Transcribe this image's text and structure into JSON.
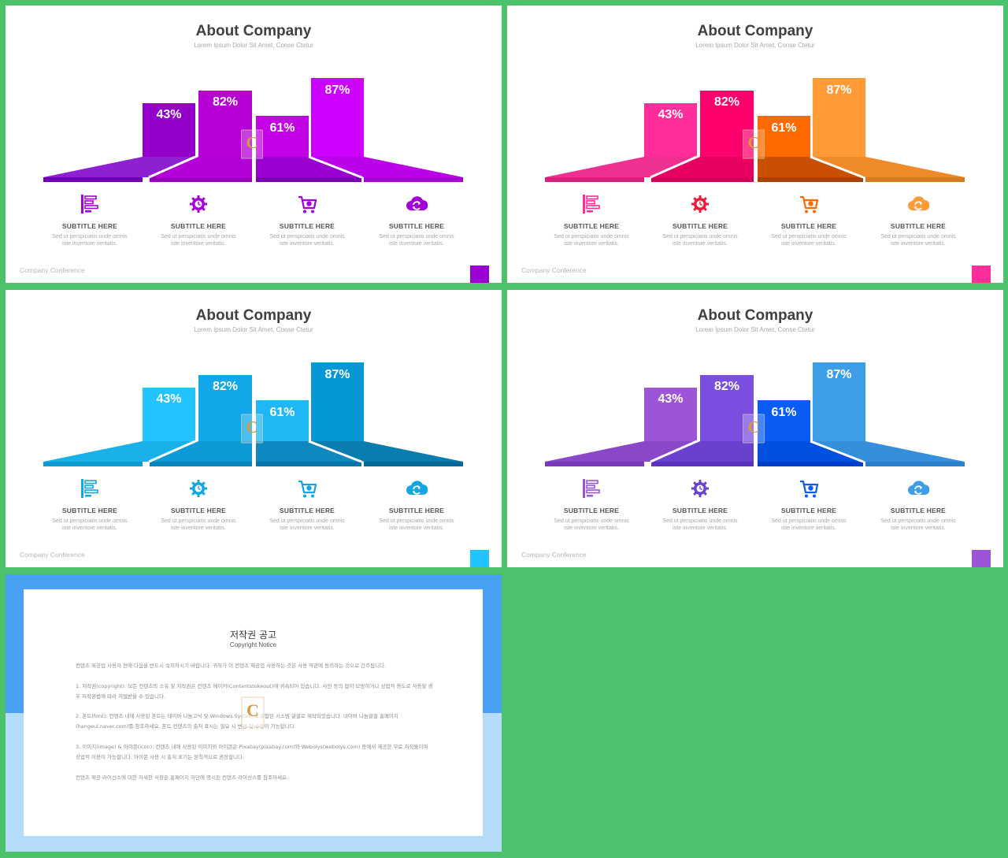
{
  "slides": [
    {
      "title": "About Company",
      "subtitle": "Lorem Ipsum Dolor Sit Amet, Conse Ctetur",
      "footer": "Company Conference",
      "colors": {
        "bar": [
          "#9400c9",
          "#b700d6",
          "#c400e8",
          "#cd00ff"
        ],
        "base_top": [
          "#8f1fd2",
          "#b300d6",
          "#9a00d0",
          "#bb00ea"
        ],
        "base_bottom": [
          "#6d00b0",
          "#9600bd",
          "#7c00b0",
          "#a500d0"
        ],
        "icon": "#a400d8",
        "corner": "#9a00d0"
      },
      "values": [
        "43%",
        "82%",
        "61%",
        "87%"
      ],
      "features": [
        {
          "icon": "list-icon",
          "title": "SUBTITLE HERE",
          "line1": "Sed ut perspiciatis unde omnis",
          "line2": "iste inventore veritatis."
        },
        {
          "icon": "gear-icon",
          "title": "SUBTITLE HERE",
          "line1": "Sed ut perspiciatis unde omnis",
          "line2": "iste inventore veritatis."
        },
        {
          "icon": "cart-icon",
          "title": "SUBTITLE HERE",
          "line1": "Sed ut perspiciatis unde omnis",
          "line2": "iste inventore veritatis."
        },
        {
          "icon": "cloud-sync-icon",
          "title": "SUBTITLE HERE",
          "line1": "Sed ut perspiciatis unde omnis",
          "line2": "iste inventore veritatis."
        }
      ]
    },
    {
      "title": "About Company",
      "subtitle": "Lorem Ipsum Dolor Sit Amet, Conse Ctetur",
      "footer": "Company Conference",
      "colors": {
        "bar": [
          "#ff2e9a",
          "#ff006c",
          "#ff6a00",
          "#ff9a35"
        ],
        "base_top": [
          "#f03090",
          "#e80060",
          "#c85000",
          "#ef8a28"
        ],
        "base_bottom": [
          "#d6207a",
          "#d0005a",
          "#a84000",
          "#d87a20"
        ],
        "icon_list": [
          "#ff2e9a",
          "#ee1a3a",
          "#ff6a00",
          "#ff9a35"
        ],
        "corner": "#ff2e9a"
      },
      "values": [
        "43%",
        "82%",
        "61%",
        "87%"
      ],
      "features": [
        {
          "icon": "list-icon",
          "title": "SUBTITLE HERE",
          "line1": "Sed ut perspiciatis unde omnis",
          "line2": "iste inventore veritatis."
        },
        {
          "icon": "gear-icon",
          "title": "SUBTITLE HERE",
          "line1": "Sed ut perspiciatis unde omnis",
          "line2": "iste inventore veritatis."
        },
        {
          "icon": "cart-icon",
          "title": "SUBTITLE HERE",
          "line1": "Sed ut perspiciatis unde omnis",
          "line2": "iste inventore veritatis."
        },
        {
          "icon": "cloud-sync-icon",
          "title": "SUBTITLE HERE",
          "line1": "Sed ut perspiciatis unde omnis",
          "line2": "iste inventore veritatis."
        }
      ]
    },
    {
      "title": "About Company",
      "subtitle": "Lorem Ipsum Dolor Sit Amet, Conse Ctetur",
      "footer": "Company Conference",
      "colors": {
        "bar": [
          "#22c4ff",
          "#10a8e8",
          "#1fb8f5",
          "#0698d4"
        ],
        "base_top": [
          "#1ab0ea",
          "#0d9bd8",
          "#0f88c0",
          "#0a7cae"
        ],
        "base_bottom": [
          "#0f9bd2",
          "#0a86bd",
          "#0a74a8",
          "#066896"
        ],
        "icon": "#13a6e3",
        "corner": "#22c4ff"
      },
      "values": [
        "43%",
        "82%",
        "61%",
        "87%"
      ],
      "features": [
        {
          "icon": "list-icon",
          "title": "SUBTITLE HERE",
          "line1": "Sed ut perspiciatis unde omnis",
          "line2": "iste inventore veritatis."
        },
        {
          "icon": "gear-icon",
          "title": "SUBTITLE HERE",
          "line1": "Sed ut perspiciatis unde omnis",
          "line2": "iste inventore veritatis."
        },
        {
          "icon": "cart-icon",
          "title": "SUBTITLE HERE",
          "line1": "Sed ut perspiciatis unde omnis",
          "line2": "iste inventore veritatis."
        },
        {
          "icon": "cloud-sync-icon",
          "title": "SUBTITLE HERE",
          "line1": "Sed ut perspiciatis unde omnis",
          "line2": "iste inventore veritatis."
        }
      ]
    },
    {
      "title": "About Company",
      "subtitle": "Lorem Ipsum Dolor Sit Amet, Conse Ctetur",
      "footer": "Company Conference",
      "colors": {
        "bar": [
          "#9b55d6",
          "#7a4fdf",
          "#0a5cf5",
          "#3d9ee8"
        ],
        "base_top": [
          "#8a48c8",
          "#6a40cf",
          "#0050e0",
          "#3590dc"
        ],
        "base_bottom": [
          "#7a3ab8",
          "#5a32bf",
          "#0040c8",
          "#2a80cc"
        ],
        "icon_list": [
          "#9b55d6",
          "#6a40cf",
          "#0a5cf5",
          "#3d9ee8"
        ],
        "corner": "#9b55d6"
      },
      "values": [
        "43%",
        "82%",
        "61%",
        "87%"
      ],
      "features": [
        {
          "icon": "list-icon",
          "title": "SUBTITLE HERE",
          "line1": "Sed ut perspiciatis unde omnis",
          "line2": "iste inventore veritatis."
        },
        {
          "icon": "gear-icon",
          "title": "SUBTITLE HERE",
          "line1": "Sed ut perspiciatis unde omnis",
          "line2": "iste inventore veritatis."
        },
        {
          "icon": "cart-icon",
          "title": "SUBTITLE HERE",
          "line1": "Sed ut perspiciatis unde omnis",
          "line2": "iste inventore veritatis."
        },
        {
          "icon": "cloud-sync-icon",
          "title": "SUBTITLE HERE",
          "line1": "Sed ut perspiciatis unde omnis",
          "line2": "iste inventore veritatis."
        }
      ]
    }
  ],
  "copyright": {
    "title": "저작권 공고",
    "subtitle": "Copyright Notice",
    "paragraphs": [
      "컨텐츠 제공업 사용자 전에 다음을 반드시 숙지하시기 바랍니다. 귀하가 이 컨텐츠 제공업 사용하는 것은 사용 약관에 동의하는 것으로 간주됩니다.",
      "1. 저작권(copyright): 모든 컨텐츠의 소유 및 저작권은 컨텐츠 메이커(Contentstokeout)에 귀속되어 있습니다. 사전 동의 없이 모방하거나 상업적 용도로 사용할 경우 저작권법에 따라 처벌받을 수 있습니다.",
      "2. 폰트(font): 컨텐츠 내에 사용된 폰트는 네이버 나눔고딕 및 Windows System에 포함된 시스템 글꼴로 제작되었습니다. 네이버 나눔글꼴 홈페이지(hangeul.naver.com)를 참조하세요. 폰트 컨텐츠의 출처 표시는 필요 시 변경 및 수정이 가능합니다.",
      "3. 이미지(image) & 아이콘(icon): 컨텐츠 내에 사용된 이미지와 아이콘은 Pixabay(pixabay.com)와 Webolys(webolys.com) 등에서 제공한 무료 저작물이며 상업적 이용이 가능합니다. 아이콘 사용 시 출처 표기는 원칙적으로 권장합니다.",
      "컨텐츠 제공 라이선스에 대한 자세한 사항은 홈페이지 하단에 명시된 컨텐츠 라이선스를 참조하세요."
    ]
  }
}
